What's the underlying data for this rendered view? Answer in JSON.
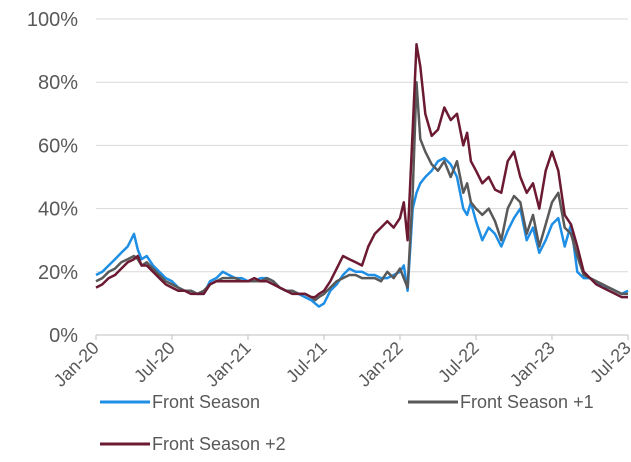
{
  "chart_data": {
    "type": "line",
    "title": "",
    "xlabel": "",
    "ylabel": "",
    "ylim": [
      0,
      100
    ],
    "y_ticks": [
      "0%",
      "20%",
      "40%",
      "60%",
      "80%",
      "100%"
    ],
    "x_ticks": [
      "Jan-20",
      "Jul-20",
      "Jan-21",
      "Jul-21",
      "Jan-22",
      "Jul-22",
      "Jan-23",
      "Jul-23"
    ],
    "grid": "horizontal",
    "legend_position": "bottom",
    "x_unit": "months since Jan-20",
    "series": [
      {
        "name": "Front Season",
        "color": "#1f8fe6",
        "x": [
          0,
          0.5,
          1,
          1.5,
          2,
          2.5,
          3,
          3.3,
          3.6,
          4,
          4.5,
          5,
          5.5,
          6,
          6.5,
          7,
          7.5,
          8,
          8.5,
          9,
          9.5,
          10,
          10.5,
          11,
          11.5,
          12,
          12.5,
          13,
          13.5,
          14,
          14.5,
          15,
          15.5,
          16,
          16.5,
          17,
          17.3,
          17.6,
          18,
          18.5,
          19,
          19.5,
          20,
          20.5,
          21,
          21.5,
          22,
          22.5,
          23,
          23.5,
          24,
          24.3,
          24.6,
          25,
          25.3,
          25.6,
          26,
          26.5,
          27,
          27.5,
          28,
          28.5,
          29,
          29.3,
          29.6,
          30,
          30.5,
          31,
          31.5,
          32,
          32.5,
          33,
          33.5,
          34,
          34.5,
          35,
          35.5,
          36,
          36.5,
          37,
          37.5,
          38,
          38.5,
          39,
          39.5,
          40,
          40.5,
          41,
          41.5,
          42
        ],
        "values": [
          19,
          20,
          22,
          24,
          26,
          28,
          32,
          27,
          24,
          25,
          22,
          20,
          18,
          17,
          15,
          14,
          14,
          13,
          13,
          17,
          18,
          20,
          19,
          18,
          18,
          17,
          17,
          18,
          18,
          17,
          15,
          14,
          14,
          13,
          12,
          11,
          10,
          9,
          10,
          14,
          16,
          19,
          21,
          20,
          20,
          19,
          19,
          18,
          18,
          19,
          20,
          22,
          14,
          40,
          45,
          48,
          50,
          52,
          55,
          56,
          54,
          50,
          40,
          38,
          42,
          36,
          30,
          34,
          32,
          28,
          33,
          37,
          40,
          30,
          34,
          26,
          30,
          35,
          37,
          28,
          35,
          20,
          18,
          18,
          17,
          15,
          15,
          14,
          13,
          14
        ]
      },
      {
        "name": "Front Season +1",
        "color": "#595959",
        "x": [
          0,
          0.5,
          1,
          1.5,
          2,
          2.5,
          3,
          3.3,
          3.6,
          4,
          4.5,
          5,
          5.5,
          6,
          6.5,
          7,
          7.5,
          8,
          8.5,
          9,
          9.5,
          10,
          10.5,
          11,
          11.5,
          12,
          12.5,
          13,
          13.5,
          14,
          14.5,
          15,
          15.5,
          16,
          16.5,
          17,
          17.3,
          17.6,
          18,
          18.5,
          19,
          19.5,
          20,
          20.5,
          21,
          21.5,
          22,
          22.5,
          23,
          23.5,
          24,
          24.3,
          24.6,
          25,
          25.3,
          25.6,
          26,
          26.5,
          27,
          27.5,
          28,
          28.5,
          29,
          29.3,
          29.6,
          30,
          30.5,
          31,
          31.5,
          32,
          32.5,
          33,
          33.5,
          34,
          34.5,
          35,
          35.5,
          36,
          36.5,
          37,
          37.5,
          38,
          38.5,
          39,
          39.5,
          40,
          40.5,
          41,
          41.5,
          42
        ],
        "values": [
          17,
          18,
          20,
          21,
          23,
          24,
          25,
          24,
          22,
          23,
          21,
          19,
          17,
          16,
          15,
          14,
          14,
          13,
          14,
          16,
          17,
          18,
          18,
          18,
          17,
          17,
          17,
          17,
          18,
          17,
          15,
          14,
          14,
          13,
          13,
          12,
          11,
          12,
          13,
          15,
          17,
          18,
          19,
          19,
          18,
          18,
          18,
          17,
          20,
          18,
          21,
          18,
          15,
          45,
          80,
          62,
          58,
          54,
          52,
          55,
          50,
          55,
          45,
          48,
          42,
          40,
          38,
          40,
          36,
          30,
          40,
          44,
          42,
          32,
          38,
          28,
          35,
          42,
          45,
          34,
          32,
          25,
          19,
          18,
          17,
          16,
          15,
          14,
          13,
          13
        ]
      },
      {
        "name": "Front Season +2",
        "color": "#6b1a32",
        "x": [
          0,
          0.5,
          1,
          1.5,
          2,
          2.5,
          3,
          3.3,
          3.6,
          4,
          4.5,
          5,
          5.5,
          6,
          6.5,
          7,
          7.5,
          8,
          8.5,
          9,
          9.5,
          10,
          10.5,
          11,
          11.5,
          12,
          12.5,
          13,
          13.5,
          14,
          14.5,
          15,
          15.5,
          16,
          16.5,
          17,
          17.3,
          17.6,
          18,
          18.5,
          19,
          19.5,
          20,
          20.5,
          21,
          21.5,
          22,
          22.5,
          23,
          23.5,
          24,
          24.3,
          24.6,
          25,
          25.3,
          25.6,
          26,
          26.5,
          27,
          27.5,
          28,
          28.5,
          29,
          29.3,
          29.6,
          30,
          30.5,
          31,
          31.5,
          32,
          32.5,
          33,
          33.5,
          34,
          34.5,
          35,
          35.5,
          36,
          36.5,
          37,
          37.5,
          38,
          38.5,
          39,
          39.5,
          40,
          40.5,
          41,
          41.5,
          42
        ],
        "values": [
          15,
          16,
          18,
          19,
          21,
          23,
          24,
          25,
          22,
          22,
          20,
          18,
          16,
          15,
          14,
          14,
          13,
          13,
          13,
          16,
          17,
          17,
          17,
          17,
          17,
          17,
          18,
          17,
          17,
          16,
          15,
          14,
          13,
          13,
          13,
          12,
          12,
          13,
          14,
          17,
          21,
          25,
          24,
          23,
          22,
          28,
          32,
          34,
          36,
          34,
          37,
          42,
          30,
          65,
          92,
          85,
          70,
          63,
          65,
          72,
          68,
          70,
          60,
          64,
          55,
          52,
          48,
          50,
          46,
          45,
          55,
          58,
          50,
          45,
          48,
          40,
          52,
          58,
          52,
          38,
          35,
          28,
          20,
          18,
          16,
          15,
          14,
          13,
          12,
          12
        ]
      }
    ]
  }
}
